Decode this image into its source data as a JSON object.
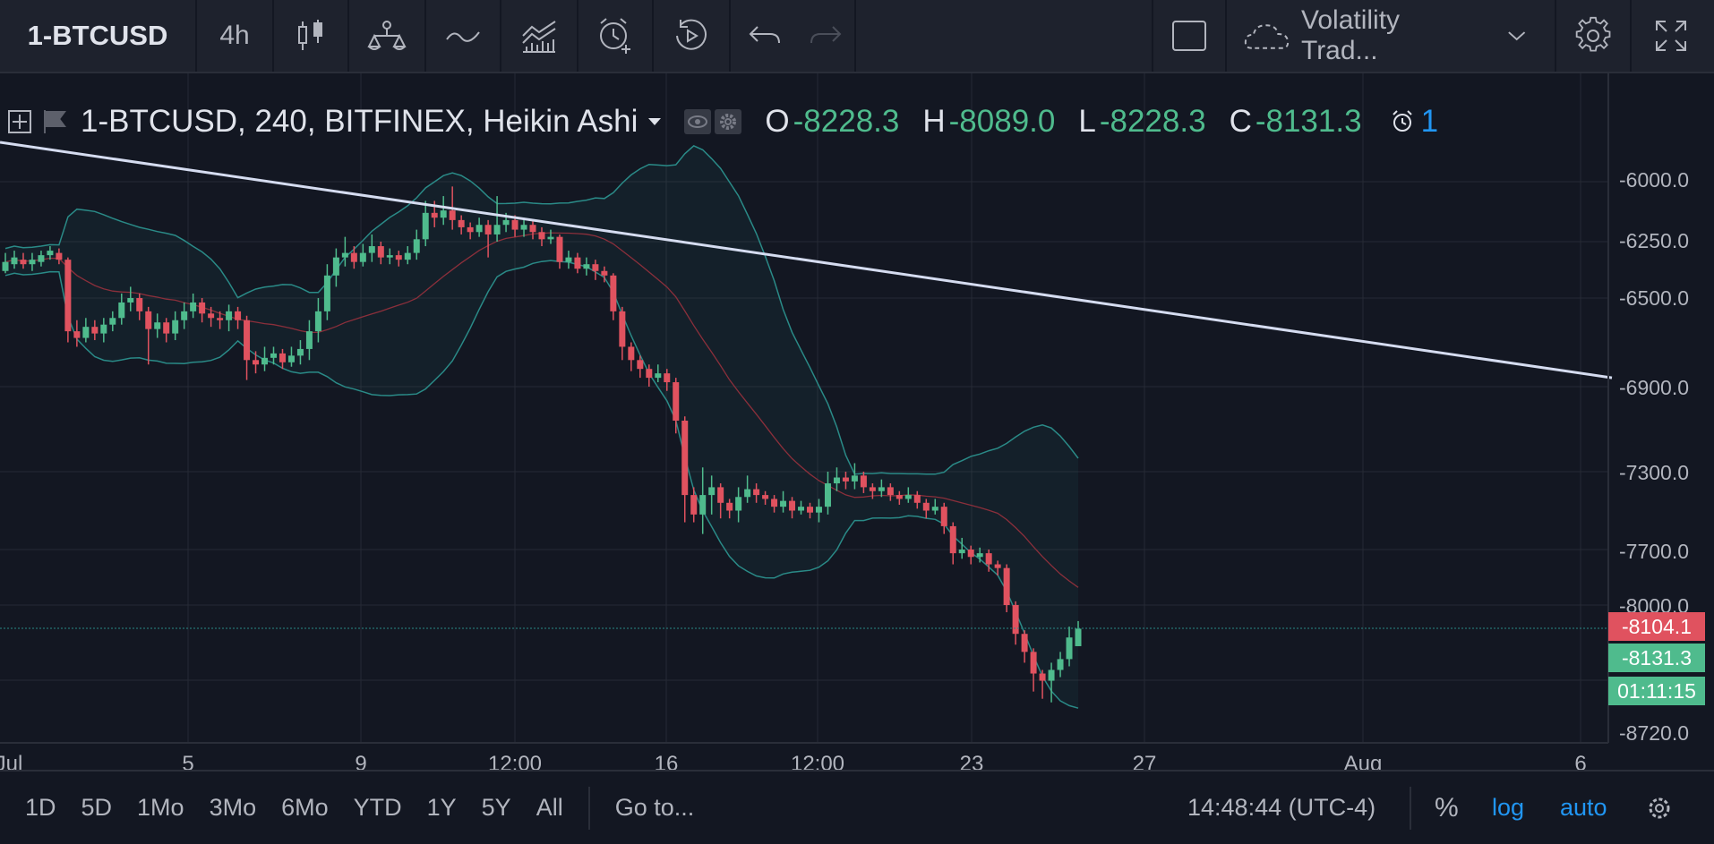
{
  "toolbar": {
    "symbol": "1-BTCUSD",
    "interval": "4h",
    "template_label": "Volatility Trad...",
    "icons": [
      "candles-icon",
      "indicators-icon",
      "compare-icon",
      "templates-icon",
      "alert-icon",
      "replay-icon",
      "undo-icon",
      "redo-icon",
      "layout-icon",
      "settings-icon",
      "fullscreen-icon"
    ]
  },
  "legend": {
    "title": "1-BTCUSD, 240, BITFINEX, Heikin Ashi",
    "o_label": "O",
    "o_value": "-8228.3",
    "h_label": "H",
    "h_value": "-8089.0",
    "l_label": "L",
    "l_value": "-8228.3",
    "c_label": "C",
    "c_value": "-8131.3",
    "alert_count": "1"
  },
  "price_axis": {
    "labels": [
      "-6000.0",
      "-6250.0",
      "-6500.0",
      "-6900.0",
      "-7300.0",
      "-7700.0",
      "-8000.0",
      "-8720.0"
    ],
    "last_price_red": "-8104.1",
    "last_price_green": "-8131.3",
    "countdown": "01:11:15"
  },
  "time_axis": {
    "labels": [
      "Jul",
      "5",
      "9",
      "12:00",
      "16",
      "12:00",
      "23",
      "27",
      "Aug",
      "6"
    ]
  },
  "bottom": {
    "ranges": [
      "1D",
      "5D",
      "1Mo",
      "3Mo",
      "6Mo",
      "YTD",
      "1Y",
      "5Y",
      "All"
    ],
    "goto": "Go to...",
    "clock": "14:48:44 (UTC-4)",
    "percent": "%",
    "log": "log",
    "auto": "auto"
  },
  "colors": {
    "up": "#4fbb8d",
    "down": "#e0525f",
    "trendline": "#d5dcf0",
    "bands": "#2a8a87"
  },
  "chart_data": {
    "type": "candlestick",
    "symbol": "1-BTCUSD",
    "x_labels": [
      "Jul",
      "5",
      "9",
      "12:00",
      "16",
      "12:00",
      "23",
      "27",
      "Aug",
      "6"
    ],
    "y_tick_labels": [
      "-6000.0",
      "-6250.0",
      "-6500.0",
      "-6900.0",
      "-7300.0",
      "-7700.0",
      "-8000.0",
      "-8720.0"
    ],
    "trendline": [
      [
        0,
        -5840
      ],
      [
        1800,
        -6860
      ]
    ],
    "candles": [
      [
        -6380,
        -6340,
        -6300,
        -6390
      ],
      [
        -6350,
        -6320,
        -6290,
        -6370
      ],
      [
        -6330,
        -6350,
        -6300,
        -6370
      ],
      [
        -6350,
        -6330,
        -6300,
        -6380
      ],
      [
        -6340,
        -6310,
        -6290,
        -6360
      ],
      [
        -6310,
        -6290,
        -6270,
        -6330
      ],
      [
        -6300,
        -6330,
        -6280,
        -6350
      ],
      [
        -6330,
        -6650,
        -6320,
        -6700
      ],
      [
        -6650,
        -6680,
        -6600,
        -6720
      ],
      [
        -6680,
        -6630,
        -6590,
        -6700
      ],
      [
        -6630,
        -6660,
        -6600,
        -6690
      ],
      [
        -6660,
        -6620,
        -6590,
        -6700
      ],
      [
        -6620,
        -6590,
        -6560,
        -6650
      ],
      [
        -6590,
        -6520,
        -6480,
        -6620
      ],
      [
        -6520,
        -6500,
        -6450,
        -6560
      ],
      [
        -6500,
        -6560,
        -6480,
        -6600
      ],
      [
        -6560,
        -6640,
        -6540,
        -6800
      ],
      [
        -6640,
        -6610,
        -6570,
        -6680
      ],
      [
        -6610,
        -6660,
        -6590,
        -6700
      ],
      [
        -6660,
        -6600,
        -6560,
        -6690
      ],
      [
        -6600,
        -6560,
        -6520,
        -6640
      ],
      [
        -6560,
        -6520,
        -6480,
        -6590
      ],
      [
        -6520,
        -6570,
        -6500,
        -6610
      ],
      [
        -6570,
        -6590,
        -6540,
        -6630
      ],
      [
        -6590,
        -6600,
        -6560,
        -6640
      ],
      [
        -6600,
        -6560,
        -6530,
        -6650
      ],
      [
        -6560,
        -6600,
        -6540,
        -6640
      ],
      [
        -6600,
        -6780,
        -6580,
        -6870
      ],
      [
        -6780,
        -6800,
        -6740,
        -6840
      ],
      [
        -6800,
        -6770,
        -6720,
        -6830
      ],
      [
        -6770,
        -6750,
        -6720,
        -6800
      ],
      [
        -6750,
        -6790,
        -6730,
        -6820
      ],
      [
        -6790,
        -6760,
        -6720,
        -6810
      ],
      [
        -6760,
        -6730,
        -6690,
        -6800
      ],
      [
        -6730,
        -6650,
        -6600,
        -6780
      ],
      [
        -6650,
        -6560,
        -6500,
        -6700
      ],
      [
        -6560,
        -6400,
        -6350,
        -6600
      ],
      [
        -6400,
        -6320,
        -6280,
        -6450
      ],
      [
        -6320,
        -6300,
        -6230,
        -6360
      ],
      [
        -6300,
        -6340,
        -6270,
        -6370
      ],
      [
        -6340,
        -6300,
        -6260,
        -6360
      ],
      [
        -6300,
        -6270,
        -6220,
        -6340
      ],
      [
        -6270,
        -6320,
        -6250,
        -6350
      ],
      [
        -6320,
        -6310,
        -6280,
        -6350
      ],
      [
        -6310,
        -6330,
        -6290,
        -6360
      ],
      [
        -6330,
        -6300,
        -6270,
        -6350
      ],
      [
        -6300,
        -6240,
        -6200,
        -6330
      ],
      [
        -6240,
        -6130,
        -6080,
        -6270
      ],
      [
        -6130,
        -6150,
        -6080,
        -6190
      ],
      [
        -6150,
        -6120,
        -6060,
        -6180
      ],
      [
        -6120,
        -6160,
        -6020,
        -6200
      ],
      [
        -6160,
        -6190,
        -6140,
        -6220
      ],
      [
        -6190,
        -6210,
        -6170,
        -6240
      ],
      [
        -6210,
        -6180,
        -6150,
        -6230
      ],
      [
        -6180,
        -6220,
        -6160,
        -6320
      ],
      [
        -6220,
        -6180,
        -6060,
        -6250
      ],
      [
        -6180,
        -6160,
        -6130,
        -6210
      ],
      [
        -6160,
        -6200,
        -6140,
        -6230
      ],
      [
        -6200,
        -6180,
        -6150,
        -6230
      ],
      [
        -6180,
        -6210,
        -6160,
        -6240
      ],
      [
        -6210,
        -6240,
        -6190,
        -6270
      ],
      [
        -6240,
        -6230,
        -6200,
        -6260
      ],
      [
        -6230,
        -6340,
        -6220,
        -6370
      ],
      [
        -6340,
        -6320,
        -6290,
        -6370
      ],
      [
        -6320,
        -6370,
        -6300,
        -6390
      ],
      [
        -6370,
        -6350,
        -6320,
        -6400
      ],
      [
        -6350,
        -6380,
        -6330,
        -6420
      ],
      [
        -6380,
        -6400,
        -6360,
        -6430
      ],
      [
        -6400,
        -6560,
        -6390,
        -6600
      ],
      [
        -6560,
        -6720,
        -6540,
        -6780
      ],
      [
        -6720,
        -6780,
        -6700,
        -6830
      ],
      [
        -6780,
        -6820,
        -6760,
        -6860
      ],
      [
        -6820,
        -6860,
        -6800,
        -6900
      ],
      [
        -6860,
        -6840,
        -6800,
        -6880
      ],
      [
        -6840,
        -6880,
        -6820,
        -6920
      ],
      [
        -6880,
        -7060,
        -6860,
        -7120
      ],
      [
        -7060,
        -7420,
        -7040,
        -7560
      ],
      [
        -7420,
        -7520,
        -7380,
        -7560
      ],
      [
        -7520,
        -7420,
        -7280,
        -7620
      ],
      [
        -7420,
        -7380,
        -7320,
        -7520
      ],
      [
        -7380,
        -7460,
        -7360,
        -7540
      ],
      [
        -7460,
        -7500,
        -7440,
        -7540
      ],
      [
        -7500,
        -7430,
        -7380,
        -7560
      ],
      [
        -7430,
        -7390,
        -7320,
        -7460
      ],
      [
        -7390,
        -7420,
        -7360,
        -7460
      ],
      [
        -7420,
        -7440,
        -7400,
        -7470
      ],
      [
        -7440,
        -7480,
        -7420,
        -7510
      ],
      [
        -7480,
        -7450,
        -7400,
        -7510
      ],
      [
        -7450,
        -7500,
        -7430,
        -7540
      ],
      [
        -7500,
        -7480,
        -7450,
        -7520
      ],
      [
        -7480,
        -7510,
        -7460,
        -7540
      ],
      [
        -7510,
        -7480,
        -7440,
        -7560
      ],
      [
        -7480,
        -7360,
        -7300,
        -7520
      ],
      [
        -7360,
        -7330,
        -7280,
        -7400
      ],
      [
        -7330,
        -7350,
        -7300,
        -7390
      ],
      [
        -7350,
        -7320,
        -7260,
        -7390
      ],
      [
        -7320,
        -7380,
        -7300,
        -7410
      ],
      [
        -7380,
        -7400,
        -7360,
        -7440
      ],
      [
        -7400,
        -7380,
        -7340,
        -7430
      ],
      [
        -7380,
        -7420,
        -7360,
        -7450
      ],
      [
        -7420,
        -7440,
        -7400,
        -7470
      ],
      [
        -7440,
        -7420,
        -7380,
        -7460
      ],
      [
        -7420,
        -7460,
        -7400,
        -7490
      ],
      [
        -7460,
        -7500,
        -7440,
        -7540
      ],
      [
        -7500,
        -7480,
        -7440,
        -7520
      ],
      [
        -7480,
        -7580,
        -7460,
        -7620
      ],
      [
        -7580,
        -7720,
        -7560,
        -7780
      ],
      [
        -7720,
        -7700,
        -7640,
        -7750
      ],
      [
        -7700,
        -7740,
        -7680,
        -7780
      ],
      [
        -7740,
        -7720,
        -7690,
        -7770
      ],
      [
        -7720,
        -7780,
        -7700,
        -7820
      ],
      [
        -7780,
        -7800,
        -7760,
        -7840
      ],
      [
        -7800,
        -8000,
        -7780,
        -8040
      ],
      [
        -8000,
        -8160,
        -7980,
        -8220
      ],
      [
        -8160,
        -8260,
        -8140,
        -8320
      ],
      [
        -8260,
        -8380,
        -8240,
        -8480
      ],
      [
        -8380,
        -8420,
        -8360,
        -8520
      ],
      [
        -8420,
        -8360,
        -8320,
        -8540
      ],
      [
        -8360,
        -8300,
        -8260,
        -8400
      ],
      [
        -8300,
        -8180,
        -8120,
        -8340
      ],
      [
        -8228.3,
        -8131.3,
        -8089.0,
        -8228.3
      ]
    ]
  }
}
